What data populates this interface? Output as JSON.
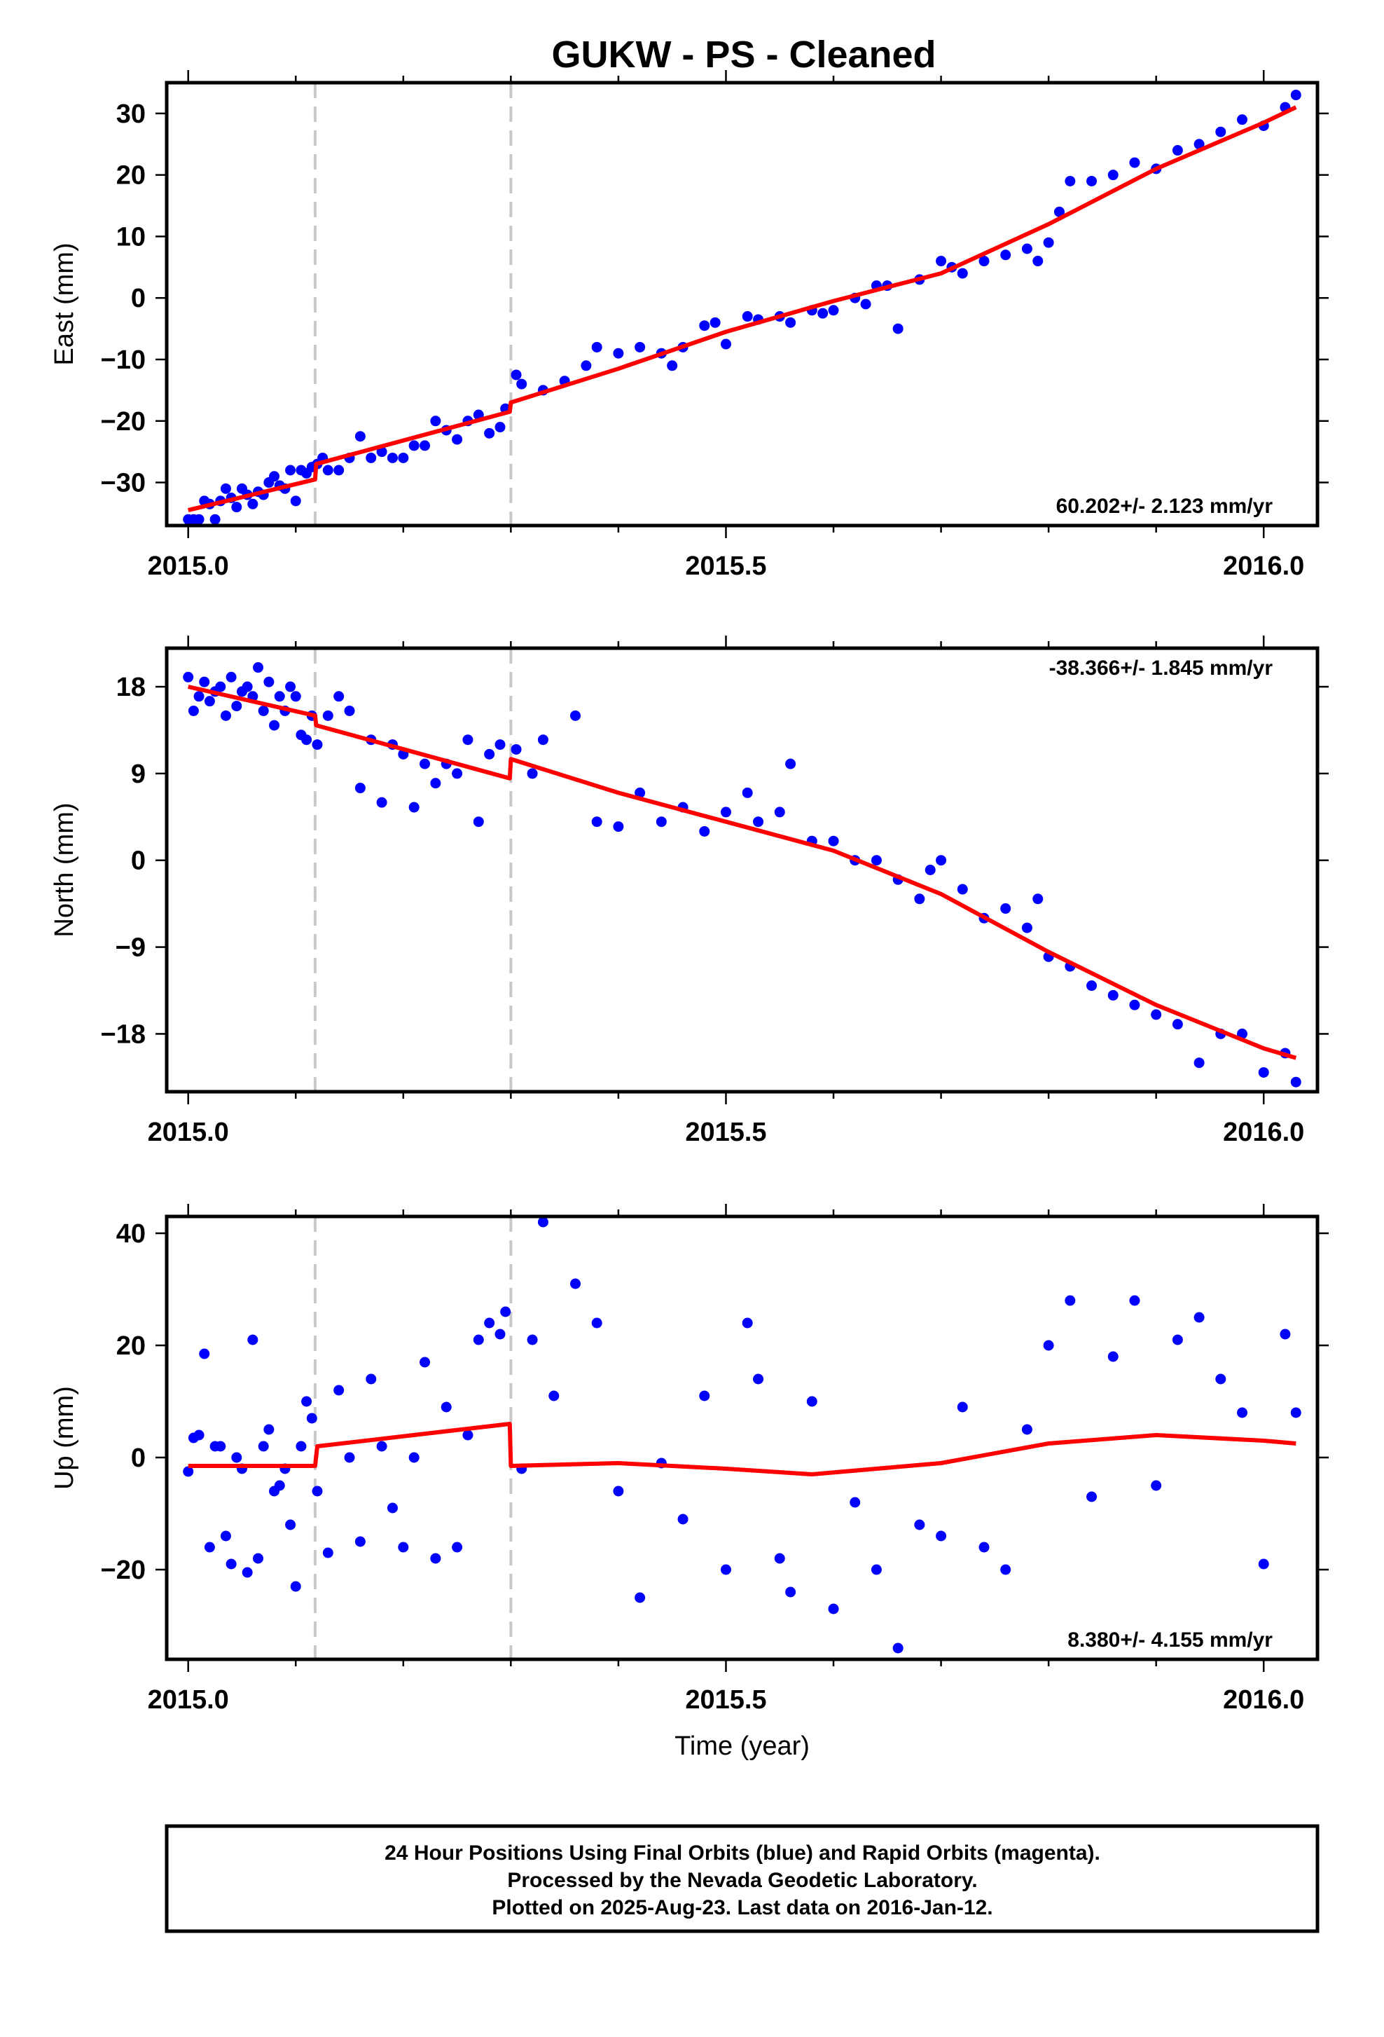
{
  "title": "GUKW  - PS - Cleaned",
  "colors": {
    "points": "#0000ff",
    "model": "#ff0000",
    "events": "#c8c8c8",
    "frame": "#000000"
  },
  "footer": {
    "lines": [
      "24 Hour Positions Using Final Orbits (blue) and Rapid Orbits (magenta).",
      "Processed by the Nevada Geodetic Laboratory.",
      "Plotted on 2025-Aug-23. Last data on 2016-Jan-12."
    ]
  },
  "chart_data": [
    {
      "type": "scatter",
      "title": "GUKW  - PS - Cleaned",
      "ylabel": "East (mm)",
      "xlabel": "",
      "xlim": [
        2014.98,
        2016.05
      ],
      "ylim": [
        -37,
        35
      ],
      "x_ticks": [
        "2015.0",
        "2015.5",
        "2016.0"
      ],
      "y_ticks": [
        "−30",
        "−20",
        "−10",
        "0",
        "10",
        "20",
        "30"
      ],
      "y_tick_values": [
        -30,
        -20,
        -10,
        0,
        10,
        20,
        30
      ],
      "grid": false,
      "event_lines": [
        2015.118,
        2015.3
      ],
      "rate_text": "60.202+/- 2.123 mm/yr",
      "rate_position": "bottom-right",
      "model": {
        "name": "model",
        "x": [
          2015.0,
          2015.118,
          2015.119,
          2015.299,
          2015.3,
          2015.4,
          2015.5,
          2015.6,
          2015.7,
          2015.8,
          2015.9,
          2016.0,
          2016.03
        ],
        "y": [
          -34.5,
          -29.5,
          -27,
          -18.5,
          -17,
          -11.5,
          -5.5,
          -0.5,
          4,
          12,
          21,
          28.5,
          31
        ]
      },
      "points": [
        [
          2015.0,
          -36
        ],
        [
          2015.005,
          -36
        ],
        [
          2015.01,
          -36
        ],
        [
          2015.015,
          -33
        ],
        [
          2015.02,
          -33.5
        ],
        [
          2015.025,
          -36
        ],
        [
          2015.03,
          -33
        ],
        [
          2015.035,
          -31
        ],
        [
          2015.04,
          -32.5
        ],
        [
          2015.045,
          -34
        ],
        [
          2015.05,
          -31
        ],
        [
          2015.055,
          -32
        ],
        [
          2015.06,
          -33.5
        ],
        [
          2015.065,
          -31.5
        ],
        [
          2015.07,
          -32
        ],
        [
          2015.075,
          -30
        ],
        [
          2015.08,
          -29
        ],
        [
          2015.085,
          -30.5
        ],
        [
          2015.09,
          -31
        ],
        [
          2015.095,
          -28
        ],
        [
          2015.1,
          -33
        ],
        [
          2015.105,
          -28
        ],
        [
          2015.11,
          -28.5
        ],
        [
          2015.115,
          -27.5
        ],
        [
          2015.12,
          -27
        ],
        [
          2015.125,
          -26
        ],
        [
          2015.13,
          -28
        ],
        [
          2015.14,
          -28
        ],
        [
          2015.15,
          -26
        ],
        [
          2015.16,
          -22.5
        ],
        [
          2015.17,
          -26
        ],
        [
          2015.18,
          -25
        ],
        [
          2015.19,
          -26
        ],
        [
          2015.2,
          -26
        ],
        [
          2015.21,
          -24
        ],
        [
          2015.22,
          -24
        ],
        [
          2015.23,
          -20
        ],
        [
          2015.24,
          -21.5
        ],
        [
          2015.25,
          -23
        ],
        [
          2015.26,
          -20
        ],
        [
          2015.27,
          -19
        ],
        [
          2015.28,
          -22
        ],
        [
          2015.29,
          -21
        ],
        [
          2015.295,
          -18
        ],
        [
          2015.305,
          -12.5
        ],
        [
          2015.31,
          -14
        ],
        [
          2015.33,
          -15
        ],
        [
          2015.35,
          -13.5
        ],
        [
          2015.37,
          -11
        ],
        [
          2015.38,
          -8
        ],
        [
          2015.4,
          -9
        ],
        [
          2015.42,
          -8
        ],
        [
          2015.44,
          -9
        ],
        [
          2015.45,
          -11
        ],
        [
          2015.46,
          -8
        ],
        [
          2015.48,
          -4.5
        ],
        [
          2015.49,
          -4
        ],
        [
          2015.5,
          -7.5
        ],
        [
          2015.52,
          -3
        ],
        [
          2015.53,
          -3.5
        ],
        [
          2015.55,
          -3
        ],
        [
          2015.56,
          -4
        ],
        [
          2015.58,
          -2
        ],
        [
          2015.59,
          -2.5
        ],
        [
          2015.6,
          -2
        ],
        [
          2015.62,
          0
        ],
        [
          2015.63,
          -1
        ],
        [
          2015.64,
          2
        ],
        [
          2015.65,
          2
        ],
        [
          2015.66,
          -5
        ],
        [
          2015.68,
          3
        ],
        [
          2015.7,
          6
        ],
        [
          2015.71,
          5
        ],
        [
          2015.72,
          4
        ],
        [
          2015.74,
          6
        ],
        [
          2015.76,
          7
        ],
        [
          2015.78,
          8
        ],
        [
          2015.79,
          6
        ],
        [
          2015.8,
          9
        ],
        [
          2015.81,
          14
        ],
        [
          2015.82,
          19
        ],
        [
          2015.84,
          19
        ],
        [
          2015.86,
          20
        ],
        [
          2015.88,
          22
        ],
        [
          2015.9,
          21
        ],
        [
          2015.92,
          24
        ],
        [
          2015.94,
          25
        ],
        [
          2015.96,
          27
        ],
        [
          2015.98,
          29
        ],
        [
          2016.0,
          28
        ],
        [
          2016.02,
          31
        ],
        [
          2016.03,
          33
        ]
      ]
    },
    {
      "type": "scatter",
      "ylabel": "North (mm)",
      "xlabel": "",
      "xlim": [
        2014.98,
        2016.05
      ],
      "ylim": [
        -24,
        22
      ],
      "x_ticks": [
        "2015.0",
        "2015.5",
        "2016.0"
      ],
      "y_ticks": [
        "18",
        "9",
        "0",
        "−9",
        "−18"
      ],
      "y_tick_values": [
        18,
        9,
        0,
        -9,
        -18
      ],
      "grid": false,
      "event_lines": [
        2015.118,
        2015.3
      ],
      "rate_text": "-38.366+/- 1.845 mm/yr",
      "rate_position": "top-right",
      "model": {
        "name": "model",
        "x": [
          2015.0,
          2015.118,
          2015.119,
          2015.299,
          2015.3,
          2015.4,
          2015.5,
          2015.6,
          2015.7,
          2015.8,
          2015.9,
          2016.0,
          2016.03
        ],
        "y": [
          18,
          15,
          14,
          8.5,
          10.5,
          7,
          4,
          1,
          -3.5,
          -9.5,
          -15,
          -19.5,
          -20.5
        ]
      },
      "points": [
        [
          2015.0,
          19
        ],
        [
          2015.005,
          15.5
        ],
        [
          2015.01,
          17
        ],
        [
          2015.015,
          18.5
        ],
        [
          2015.02,
          16.5
        ],
        [
          2015.025,
          17.5
        ],
        [
          2015.03,
          18
        ],
        [
          2015.035,
          15
        ],
        [
          2015.04,
          19
        ],
        [
          2015.045,
          16
        ],
        [
          2015.05,
          17.5
        ],
        [
          2015.055,
          18
        ],
        [
          2015.06,
          17
        ],
        [
          2015.065,
          20
        ],
        [
          2015.07,
          15.5
        ],
        [
          2015.075,
          18.5
        ],
        [
          2015.08,
          14
        ],
        [
          2015.085,
          17
        ],
        [
          2015.09,
          15.5
        ],
        [
          2015.095,
          18
        ],
        [
          2015.1,
          17
        ],
        [
          2015.105,
          13
        ],
        [
          2015.11,
          12.5
        ],
        [
          2015.115,
          15
        ],
        [
          2015.12,
          12
        ],
        [
          2015.13,
          15
        ],
        [
          2015.14,
          17
        ],
        [
          2015.15,
          15.5
        ],
        [
          2015.16,
          7.5
        ],
        [
          2015.17,
          12.5
        ],
        [
          2015.18,
          6
        ],
        [
          2015.19,
          12
        ],
        [
          2015.2,
          11
        ],
        [
          2015.21,
          5.5
        ],
        [
          2015.22,
          10
        ],
        [
          2015.23,
          8
        ],
        [
          2015.24,
          10
        ],
        [
          2015.25,
          9
        ],
        [
          2015.26,
          12.5
        ],
        [
          2015.27,
          4
        ],
        [
          2015.28,
          11
        ],
        [
          2015.29,
          12
        ],
        [
          2015.305,
          11.5
        ],
        [
          2015.32,
          9
        ],
        [
          2015.33,
          12.5
        ],
        [
          2015.36,
          15
        ],
        [
          2015.38,
          4
        ],
        [
          2015.4,
          3.5
        ],
        [
          2015.42,
          7
        ],
        [
          2015.44,
          4
        ],
        [
          2015.46,
          5.5
        ],
        [
          2015.48,
          3
        ],
        [
          2015.5,
          5
        ],
        [
          2015.52,
          7
        ],
        [
          2015.53,
          4
        ],
        [
          2015.55,
          5
        ],
        [
          2015.56,
          10
        ],
        [
          2015.58,
          2
        ],
        [
          2015.6,
          2
        ],
        [
          2015.62,
          0
        ],
        [
          2015.64,
          0
        ],
        [
          2015.66,
          -2
        ],
        [
          2015.68,
          -4
        ],
        [
          2015.69,
          -1
        ],
        [
          2015.7,
          0
        ],
        [
          2015.72,
          -3
        ],
        [
          2015.74,
          -6
        ],
        [
          2015.76,
          -5
        ],
        [
          2015.78,
          -7
        ],
        [
          2015.79,
          -4
        ],
        [
          2015.8,
          -10
        ],
        [
          2015.82,
          -11
        ],
        [
          2015.84,
          -13
        ],
        [
          2015.86,
          -14
        ],
        [
          2015.88,
          -15
        ],
        [
          2015.9,
          -16
        ],
        [
          2015.92,
          -17
        ],
        [
          2015.94,
          -21
        ],
        [
          2015.96,
          -18
        ],
        [
          2015.98,
          -18
        ],
        [
          2016.0,
          -22
        ],
        [
          2016.02,
          -20
        ],
        [
          2016.03,
          -23
        ]
      ]
    },
    {
      "type": "scatter",
      "ylabel": "Up (mm)",
      "xlabel": "Time (year)",
      "xlim": [
        2014.98,
        2016.05
      ],
      "ylim": [
        -36,
        43
      ],
      "x_ticks": [
        "2015.0",
        "2015.5",
        "2016.0"
      ],
      "y_ticks": [
        "40",
        "20",
        "0",
        "−20"
      ],
      "y_tick_values": [
        40,
        20,
        0,
        -20
      ],
      "grid": false,
      "event_lines": [
        2015.118,
        2015.3
      ],
      "rate_text": "8.380+/- 4.155 mm/yr",
      "rate_position": "bottom-right",
      "model": {
        "name": "model",
        "x": [
          2015.0,
          2015.118,
          2015.12,
          2015.299,
          2015.3,
          2015.4,
          2015.5,
          2015.58,
          2015.7,
          2015.8,
          2015.9,
          2016.0,
          2016.03
        ],
        "y": [
          -1.5,
          -1.5,
          2,
          6,
          -1.5,
          -1,
          -2,
          -3,
          -1,
          2.5,
          4,
          3,
          2.5
        ]
      },
      "points": [
        [
          2015.0,
          -2.5
        ],
        [
          2015.005,
          3.5
        ],
        [
          2015.01,
          4
        ],
        [
          2015.015,
          18.5
        ],
        [
          2015.02,
          -16
        ],
        [
          2015.025,
          2
        ],
        [
          2015.03,
          2
        ],
        [
          2015.035,
          -14
        ],
        [
          2015.04,
          -19
        ],
        [
          2015.045,
          0
        ],
        [
          2015.05,
          -2
        ],
        [
          2015.055,
          -20.5
        ],
        [
          2015.06,
          21
        ],
        [
          2015.065,
          -18
        ],
        [
          2015.07,
          2
        ],
        [
          2015.075,
          5
        ],
        [
          2015.08,
          -6
        ],
        [
          2015.085,
          -5
        ],
        [
          2015.09,
          -2
        ],
        [
          2015.095,
          -12
        ],
        [
          2015.1,
          -23
        ],
        [
          2015.105,
          2
        ],
        [
          2015.11,
          10
        ],
        [
          2015.115,
          7
        ],
        [
          2015.12,
          -6
        ],
        [
          2015.13,
          -17
        ],
        [
          2015.14,
          12
        ],
        [
          2015.15,
          0
        ],
        [
          2015.16,
          -15
        ],
        [
          2015.17,
          14
        ],
        [
          2015.18,
          2
        ],
        [
          2015.19,
          -9
        ],
        [
          2015.2,
          -16
        ],
        [
          2015.21,
          0
        ],
        [
          2015.22,
          17
        ],
        [
          2015.23,
          -18
        ],
        [
          2015.24,
          9
        ],
        [
          2015.25,
          -16
        ],
        [
          2015.26,
          4
        ],
        [
          2015.27,
          21
        ],
        [
          2015.28,
          24
        ],
        [
          2015.29,
          22
        ],
        [
          2015.295,
          26
        ],
        [
          2015.31,
          -2
        ],
        [
          2015.32,
          21
        ],
        [
          2015.33,
          42
        ],
        [
          2015.34,
          11
        ],
        [
          2015.36,
          31
        ],
        [
          2015.38,
          24
        ],
        [
          2015.4,
          -6
        ],
        [
          2015.42,
          -25
        ],
        [
          2015.44,
          -1
        ],
        [
          2015.46,
          -11
        ],
        [
          2015.48,
          11
        ],
        [
          2015.5,
          -20
        ],
        [
          2015.52,
          24
        ],
        [
          2015.53,
          14
        ],
        [
          2015.55,
          -18
        ],
        [
          2015.56,
          -24
        ],
        [
          2015.58,
          10
        ],
        [
          2015.6,
          -27
        ],
        [
          2015.62,
          -8
        ],
        [
          2015.64,
          -20
        ],
        [
          2015.66,
          -34
        ],
        [
          2015.68,
          -12
        ],
        [
          2015.7,
          -14
        ],
        [
          2015.72,
          9
        ],
        [
          2015.74,
          -16
        ],
        [
          2015.76,
          -20
        ],
        [
          2015.78,
          5
        ],
        [
          2015.8,
          20
        ],
        [
          2015.82,
          28
        ],
        [
          2015.84,
          -7
        ],
        [
          2015.86,
          18
        ],
        [
          2015.88,
          28
        ],
        [
          2015.9,
          -5
        ],
        [
          2015.92,
          21
        ],
        [
          2015.94,
          25
        ],
        [
          2015.96,
          14
        ],
        [
          2015.98,
          8
        ],
        [
          2016.0,
          -19
        ],
        [
          2016.02,
          22
        ],
        [
          2016.03,
          8
        ]
      ]
    }
  ]
}
